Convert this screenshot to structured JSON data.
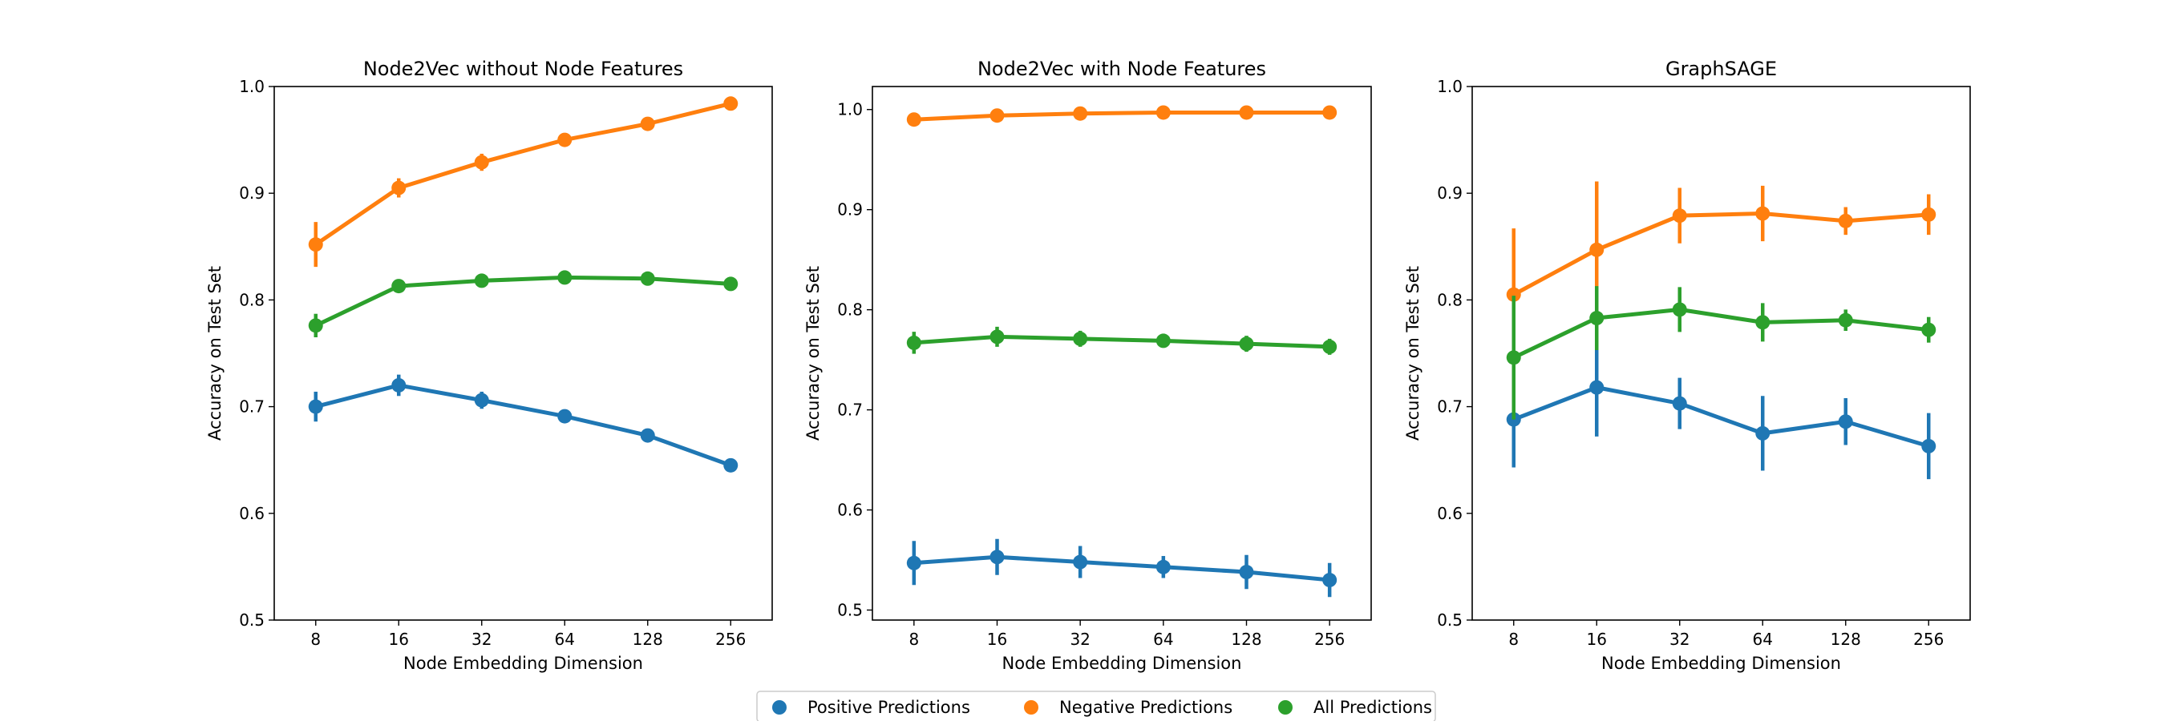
{
  "legend": {
    "placement": "bottom-center",
    "items": [
      {
        "label": "Positive Predictions",
        "color": "#1f77b4"
      },
      {
        "label": "Negative Predictions",
        "color": "#ff7f0e"
      },
      {
        "label": "All Predictions",
        "color": "#2ca02c"
      }
    ]
  },
  "chart_data": [
    {
      "type": "line",
      "title": "Node2Vec without Node Features",
      "xlabel": "Node Embedding Dimension",
      "ylabel": "Accuracy on Test Set",
      "categories": [
        "8",
        "16",
        "32",
        "64",
        "128",
        "256"
      ],
      "ylim": [
        0.5,
        1.0
      ],
      "yticks": [
        "0.5",
        "0.6",
        "0.7",
        "0.8",
        "0.9",
        "1.0"
      ],
      "grid": false,
      "series": [
        {
          "name": "Positive Predictions",
          "color": "#1f77b4",
          "values": [
            0.7,
            0.72,
            0.706,
            0.691,
            0.673,
            0.645
          ],
          "err": [
            0.014,
            0.01,
            0.008,
            0.005,
            0.005,
            0.004
          ]
        },
        {
          "name": "Negative Predictions",
          "color": "#ff7f0e",
          "values": [
            0.852,
            0.905,
            0.929,
            0.95,
            0.965,
            0.984
          ],
          "err": [
            0.021,
            0.009,
            0.008,
            0.004,
            0.004,
            0.003
          ]
        },
        {
          "name": "All Predictions",
          "color": "#2ca02c",
          "values": [
            0.776,
            0.813,
            0.818,
            0.821,
            0.82,
            0.815
          ],
          "err": [
            0.011,
            0.006,
            0.004,
            0.003,
            0.003,
            0.003
          ]
        }
      ]
    },
    {
      "type": "line",
      "title": "Node2Vec with Node Features",
      "xlabel": "Node Embedding Dimension",
      "ylabel": "Accuracy on Test Set",
      "categories": [
        "8",
        "16",
        "32",
        "64",
        "128",
        "256"
      ],
      "ylim": [
        0.49,
        1.023
      ],
      "yticks": [
        "0.5",
        "0.6",
        "0.7",
        "0.8",
        "0.9",
        "1.0"
      ],
      "grid": false,
      "series": [
        {
          "name": "Positive Predictions",
          "color": "#1f77b4",
          "values": [
            0.547,
            0.553,
            0.548,
            0.543,
            0.538,
            0.53
          ],
          "err": [
            0.022,
            0.018,
            0.016,
            0.011,
            0.017,
            0.017
          ]
        },
        {
          "name": "Negative Predictions",
          "color": "#ff7f0e",
          "values": [
            0.99,
            0.994,
            0.996,
            0.997,
            0.997,
            0.997
          ],
          "err": [
            0.003,
            0.002,
            0.002,
            0.001,
            0.002,
            0.001
          ]
        },
        {
          "name": "All Predictions",
          "color": "#2ca02c",
          "values": [
            0.767,
            0.773,
            0.771,
            0.769,
            0.766,
            0.763
          ],
          "err": [
            0.011,
            0.01,
            0.008,
            0.006,
            0.008,
            0.008
          ]
        }
      ]
    },
    {
      "type": "line",
      "title": "GraphSAGE",
      "xlabel": "Node Embedding Dimension",
      "ylabel": "Accuracy on Test Set",
      "categories": [
        "8",
        "16",
        "32",
        "64",
        "128",
        "256"
      ],
      "ylim": [
        0.5,
        1.0
      ],
      "yticks": [
        "0.5",
        "0.6",
        "0.7",
        "0.8",
        "0.9",
        "1.0"
      ],
      "grid": false,
      "series": [
        {
          "name": "Positive Predictions",
          "color": "#1f77b4",
          "values": [
            0.688,
            0.718,
            0.703,
            0.675,
            0.686,
            0.663
          ],
          "err": [
            0.045,
            0.046,
            0.024,
            0.035,
            0.022,
            0.031
          ]
        },
        {
          "name": "Negative Predictions",
          "color": "#ff7f0e",
          "values": [
            0.805,
            0.847,
            0.879,
            0.881,
            0.874,
            0.88
          ],
          "err": [
            0.062,
            0.064,
            0.026,
            0.026,
            0.013,
            0.019
          ]
        },
        {
          "name": "All Predictions",
          "color": "#2ca02c",
          "values": [
            0.746,
            0.783,
            0.791,
            0.779,
            0.781,
            0.772
          ],
          "err": [
            0.058,
            0.03,
            0.021,
            0.018,
            0.01,
            0.012
          ]
        }
      ]
    }
  ]
}
